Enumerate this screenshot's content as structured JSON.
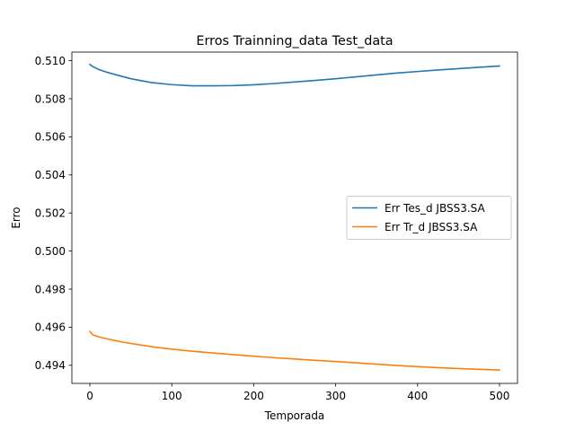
{
  "chart_data": {
    "type": "line",
    "title": "Erros Trainning_data Test_data",
    "xlabel": "Temporada",
    "ylabel": "Erro",
    "xlim": [
      -22,
      522
    ],
    "ylim": [
      0.49305,
      0.51045
    ],
    "xticks": [
      0,
      100,
      200,
      300,
      400,
      500
    ],
    "xtick_labels": [
      "0",
      "100",
      "200",
      "300",
      "400",
      "500"
    ],
    "yticks": [
      0.494,
      0.496,
      0.498,
      0.5,
      0.502,
      0.504,
      0.506,
      0.508,
      0.51
    ],
    "ytick_labels": [
      "0.494",
      "0.496",
      "0.498",
      "0.500",
      "0.502",
      "0.504",
      "0.506",
      "0.508",
      "0.510"
    ],
    "grid": false,
    "legend_position": "center-right",
    "series": [
      {
        "name": "Err Tes_d JBSS3.SA",
        "color": "#1f77b4",
        "x": [
          0,
          3,
          10,
          20,
          30,
          50,
          75,
          100,
          125,
          150,
          175,
          200,
          225,
          250,
          275,
          300,
          325,
          350,
          375,
          400,
          425,
          450,
          475,
          500
        ],
        "y": [
          0.5098,
          0.5097,
          0.50955,
          0.5094,
          0.50928,
          0.50905,
          0.50885,
          0.50874,
          0.50868,
          0.50868,
          0.50869,
          0.50873,
          0.5088,
          0.50888,
          0.50896,
          0.50905,
          0.50915,
          0.50925,
          0.50935,
          0.50943,
          0.50951,
          0.50958,
          0.50965,
          0.50972
        ]
      },
      {
        "name": "Err Tr_d JBSS3.SA",
        "color": "#ff7f0e",
        "x": [
          0,
          3,
          8,
          15,
          25,
          40,
          60,
          80,
          100,
          125,
          150,
          175,
          200,
          225,
          250,
          275,
          300,
          325,
          350,
          375,
          400,
          425,
          450,
          475,
          500
        ],
        "y": [
          0.49578,
          0.49562,
          0.49553,
          0.49545,
          0.49535,
          0.49522,
          0.49508,
          0.49495,
          0.49485,
          0.49474,
          0.49465,
          0.49456,
          0.49448,
          0.4944,
          0.49433,
          0.49426,
          0.4942,
          0.49413,
          0.49406,
          0.49399,
          0.49393,
          0.49388,
          0.49383,
          0.49379,
          0.49375
        ]
      }
    ]
  }
}
